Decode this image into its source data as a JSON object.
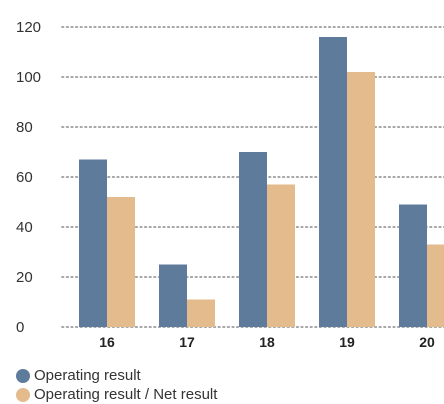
{
  "chart_data": {
    "type": "bar",
    "categories": [
      "16",
      "17",
      "18",
      "19",
      "20"
    ],
    "series": [
      {
        "name": "Operating result",
        "values": [
          67,
          25,
          70,
          116,
          49
        ],
        "color": "#5f7b9c"
      },
      {
        "name": "Operating result / Net result",
        "values": [
          52,
          11,
          57,
          102,
          33
        ],
        "color": "#e3bb8c"
      }
    ],
    "yticks": [
      "0",
      "20",
      "40",
      "60",
      "80",
      "100",
      "120"
    ],
    "ylim": [
      0,
      120
    ],
    "grid": true,
    "legend_position": "bottom-left"
  }
}
